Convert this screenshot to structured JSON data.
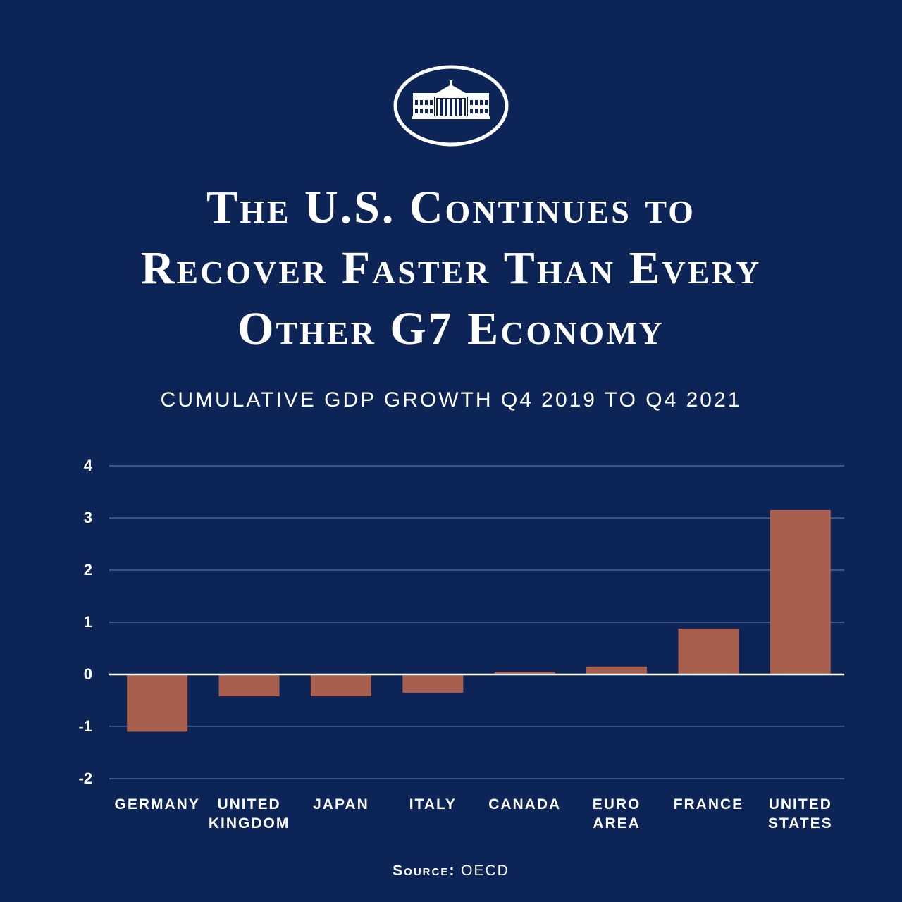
{
  "header": {
    "logo_icon": "white-house-seal-icon",
    "title_lines": [
      "The U.S. Continues to",
      "Recover Faster Than Every",
      "Other G7 Economy"
    ]
  },
  "colors": {
    "background": "#0d2457",
    "bar": "#a95f4e",
    "grid": "#3d5488",
    "zero_line": "#ffffff",
    "text": "#ffffff"
  },
  "footer": {
    "source_label": "Source:",
    "source_value": "OECD"
  },
  "chart_data": {
    "type": "bar",
    "title": "CUMULATIVE GDP GROWTH Q4 2019 TO Q4 2021",
    "xlabel": "",
    "ylabel": "",
    "ylim": [
      -2,
      4
    ],
    "yticks": [
      4,
      3,
      2,
      1,
      0,
      -1,
      -2
    ],
    "grid": true,
    "categories": [
      [
        "Germany"
      ],
      [
        "United",
        "Kingdom"
      ],
      [
        "Japan"
      ],
      [
        "Italy"
      ],
      [
        "Canada"
      ],
      [
        "Euro",
        "Area"
      ],
      [
        "France"
      ],
      [
        "United",
        "States"
      ]
    ],
    "values": [
      -1.1,
      -0.42,
      -0.42,
      -0.35,
      0.05,
      0.15,
      0.88,
      3.15
    ]
  }
}
